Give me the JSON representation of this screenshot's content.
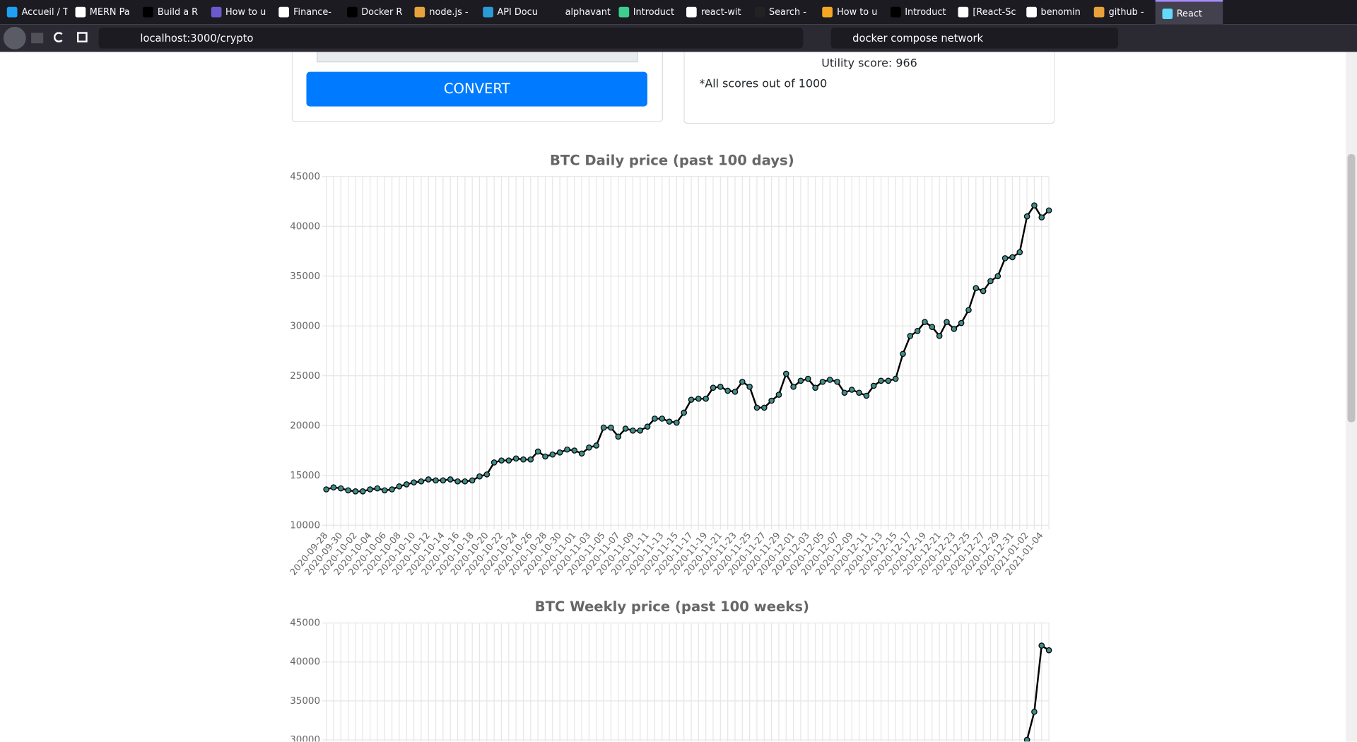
{
  "browser": {
    "tabs": [
      "Accueil / Twit",
      "MERN Pa",
      "Build a R",
      "How to u",
      "Finance-",
      "Docker R",
      "node.js -",
      "API Docu",
      "alphavantage",
      "Introduct",
      "react-wit",
      "Search -",
      "How to u",
      "Introduct",
      "[React-Sc",
      "benomin",
      "github - ",
      "React"
    ],
    "url": "localhost:3000/crypto",
    "search": "docker compose network"
  },
  "page": {
    "convert_button": "CONVERT",
    "utility_score": "Utility score: 966",
    "scores_note": "*All scores out of 1000"
  },
  "chart_data": [
    {
      "type": "line",
      "title": "BTC Daily price (past 100 days)",
      "categories": [
        "2020-09-28",
        null,
        "2020-09-30",
        null,
        "2020-10-02",
        null,
        "2020-10-04",
        null,
        "2020-10-06",
        null,
        "2020-10-08",
        null,
        "2020-10-10",
        null,
        "2020-10-12",
        null,
        "2020-10-14",
        null,
        "2020-10-16",
        null,
        "2020-10-18",
        null,
        "2020-10-20",
        null,
        "2020-10-22",
        null,
        "2020-10-24",
        null,
        "2020-10-26",
        null,
        "2020-10-28",
        null,
        "2020-10-30",
        null,
        "2020-11-01",
        null,
        "2020-11-03",
        null,
        "2020-11-05",
        null,
        "2020-11-07",
        null,
        "2020-11-09",
        null,
        "2020-11-11",
        null,
        "2020-11-13",
        null,
        "2020-11-15",
        null,
        "2020-11-17",
        null,
        "2020-11-19",
        null,
        "2020-11-21",
        null,
        "2020-11-23",
        null,
        "2020-11-25",
        null,
        "2020-11-27",
        null,
        "2020-11-29",
        null,
        "2020-12-01",
        null,
        "2020-12-03",
        null,
        "2020-12-05",
        null,
        "2020-12-07",
        null,
        "2020-12-09",
        null,
        "2020-12-11",
        null,
        "2020-12-13",
        null,
        "2020-12-15",
        null,
        "2020-12-17",
        null,
        "2020-12-19",
        null,
        "2020-12-21",
        null,
        "2020-12-23",
        null,
        "2020-12-25",
        null,
        "2020-12-27",
        null,
        "2020-12-29",
        null,
        "2020-12-31",
        null,
        "2021-01-02",
        null,
        "2021-01-04",
        null
      ],
      "values": [
        13600,
        13800,
        13700,
        13500,
        13400,
        13400,
        13600,
        13700,
        13500,
        13600,
        13900,
        14100,
        14300,
        14400,
        14600,
        14500,
        14500,
        14600,
        14400,
        14400,
        14500,
        14900,
        15100,
        16300,
        16500,
        16500,
        16700,
        16600,
        16600,
        17400,
        16900,
        17100,
        17300,
        17600,
        17500,
        17200,
        17800,
        18000,
        19800,
        19800,
        18900,
        19700,
        19500,
        19500,
        19900,
        20700,
        20700,
        20400,
        20300,
        21300,
        22600,
        22700,
        22700,
        23800,
        23900,
        23500,
        23400,
        24400,
        23900,
        21800,
        21800,
        22500,
        23100,
        25200,
        23900,
        24500,
        24700,
        23800,
        24400,
        24600,
        24400,
        23300,
        23600,
        23300,
        23000,
        24000,
        24500,
        24500,
        24700,
        27200,
        29000,
        29500,
        30400,
        29900,
        29000,
        30400,
        29700,
        30300,
        31600,
        33800,
        33500,
        34500,
        35000,
        36800,
        36900,
        37400,
        41000,
        42100,
        40900,
        41600
      ],
      "color": "#000000",
      "point_color": "#3f8c88",
      "ylim": [
        10000,
        45000
      ],
      "yticks": [
        10000,
        15000,
        20000,
        25000,
        30000,
        35000,
        40000,
        45000
      ],
      "grid": true
    },
    {
      "type": "line",
      "title": "BTC Weekly price (past 100 weeks)",
      "categories": [
        null,
        null,
        null,
        null
      ],
      "values": [
        30000,
        33600,
        42100,
        41500
      ],
      "color": "#000000",
      "point_color": "#3f8c88",
      "ylim": [
        30000,
        45000
      ],
      "yticks": [
        30000,
        35000,
        40000,
        45000
      ],
      "grid": true
    }
  ]
}
